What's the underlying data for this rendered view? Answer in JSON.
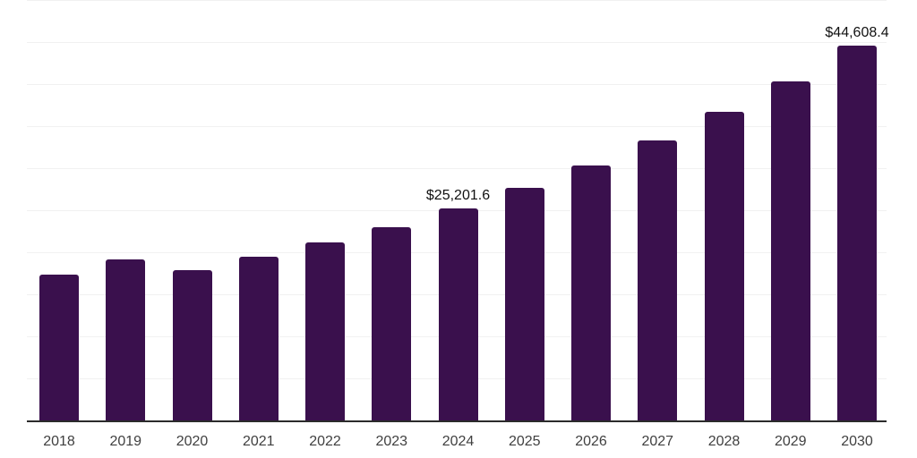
{
  "chart_data": {
    "type": "bar",
    "title": "",
    "xlabel": "",
    "ylabel": "",
    "categories": [
      "2018",
      "2019",
      "2020",
      "2021",
      "2022",
      "2023",
      "2024",
      "2025",
      "2026",
      "2027",
      "2028",
      "2029",
      "2030"
    ],
    "values": [
      17300,
      19200,
      17900,
      19500,
      21200,
      23000,
      25201.6,
      27700,
      30300,
      33250,
      36670,
      40280,
      44608.4
    ],
    "data_labels": {
      "2024": "$25,201.6",
      "2030": "$44,608.4"
    },
    "ylim": [
      0,
      50000
    ],
    "grid_step": 5000,
    "grid": "horizontal",
    "legend": "none",
    "bar_color": "#3a104d"
  },
  "colors": {
    "background": "#ffffff",
    "bar": "#3a104d",
    "gridline": "#f1f1f1",
    "axis_line": "#2b2b2b",
    "tick_label": "#404040",
    "data_label": "#111111"
  }
}
